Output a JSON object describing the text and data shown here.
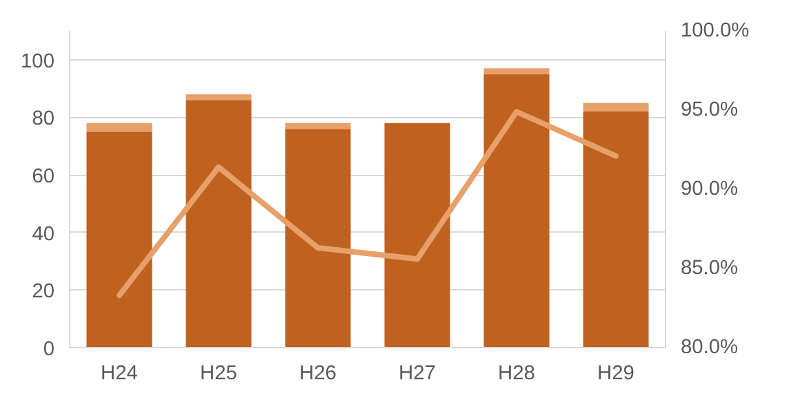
{
  "chart_data": {
    "type": "bar",
    "stacked": true,
    "categories": [
      "H24",
      "H25",
      "H26",
      "H27",
      "H28",
      "H29"
    ],
    "series": [
      {
        "color": "#bf6220",
        "values": [
          75,
          86,
          76,
          78,
          95,
          82
        ]
      },
      {
        "color": "#e8a06a",
        "values": [
          3,
          2,
          2,
          0,
          2,
          3
        ]
      },
      {
        "type": "line",
        "axis": "y2",
        "color": "#e8a06a",
        "values": [
          83.3,
          91.4,
          86.3,
          85.6,
          94.9,
          92.1
        ]
      }
    ],
    "ylim": [
      0,
      110
    ],
    "yticks": [
      0,
      20,
      40,
      60,
      80,
      100
    ],
    "y2lim": [
      80,
      100
    ],
    "y2ticks": [
      {
        "value": 80,
        "label": "80.0%"
      },
      {
        "value": 85,
        "label": "85.0%"
      },
      {
        "value": 90,
        "label": "90.0%"
      },
      {
        "value": 95,
        "label": "95.0%"
      },
      {
        "value": 100,
        "label": "100.0%"
      }
    ],
    "grid": "y",
    "line_style": "solid"
  }
}
